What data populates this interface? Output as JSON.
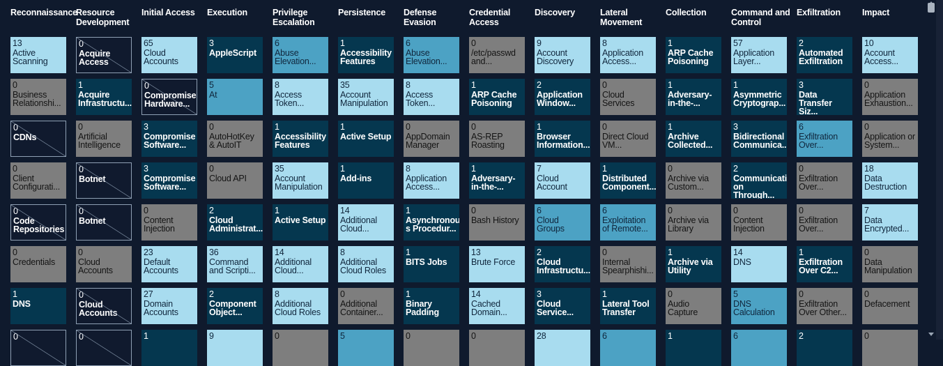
{
  "tactics": [
    {
      "name": "Reconnaissance",
      "techniques": [
        {
          "count": "13",
          "name": "Active Scanning",
          "tone": "light"
        },
        {
          "count": "0",
          "name": "Business Relationshi...",
          "tone": "gray"
        },
        {
          "count": "0",
          "name": "CDNs",
          "tone": "empty"
        },
        {
          "count": "0",
          "name": "Client Configurati...",
          "tone": "gray"
        },
        {
          "count": "0",
          "name": "Code Repositories",
          "tone": "empty"
        },
        {
          "count": "0",
          "name": "Credentials",
          "tone": "gray"
        },
        {
          "count": "1",
          "name": "DNS",
          "tone": "dark"
        },
        {
          "count": "0",
          "name": "",
          "tone": "empty"
        }
      ]
    },
    {
      "name": "Resource Development",
      "techniques": [
        {
          "count": "0",
          "name": "Acquire Access",
          "tone": "empty"
        },
        {
          "count": "1",
          "name": "Acquire Infrastructu...",
          "tone": "dark"
        },
        {
          "count": "0",
          "name": "Artificial Intelligence",
          "tone": "gray"
        },
        {
          "count": "0",
          "name": "Botnet",
          "tone": "empty"
        },
        {
          "count": "0",
          "name": "Botnet",
          "tone": "empty"
        },
        {
          "count": "0",
          "name": "Cloud Accounts",
          "tone": "gray"
        },
        {
          "count": "0",
          "name": "Cloud Accounts",
          "tone": "empty"
        },
        {
          "count": "0",
          "name": "",
          "tone": "empty"
        }
      ]
    },
    {
      "name": "Initial Access",
      "techniques": [
        {
          "count": "65",
          "name": "Cloud Accounts",
          "tone": "light"
        },
        {
          "count": "0",
          "name": "Compromise Hardware...",
          "tone": "empty"
        },
        {
          "count": "3",
          "name": "Compromise Software...",
          "tone": "dark"
        },
        {
          "count": "3",
          "name": "Compromise Software...",
          "tone": "dark"
        },
        {
          "count": "0",
          "name": "Content Injection",
          "tone": "gray"
        },
        {
          "count": "23",
          "name": "Default Accounts",
          "tone": "light"
        },
        {
          "count": "27",
          "name": "Domain Accounts",
          "tone": "light"
        },
        {
          "count": "1",
          "name": "",
          "tone": "dark"
        }
      ]
    },
    {
      "name": "Execution",
      "techniques": [
        {
          "count": "3",
          "name": "AppleScript",
          "tone": "dark"
        },
        {
          "count": "5",
          "name": "At",
          "tone": "mid"
        },
        {
          "count": "0",
          "name": "AutoHotKey & AutoIT",
          "tone": "gray"
        },
        {
          "count": "0",
          "name": "Cloud API",
          "tone": "gray"
        },
        {
          "count": "2",
          "name": "Cloud Administrat...",
          "tone": "dark"
        },
        {
          "count": "36",
          "name": "Command and Scripti...",
          "tone": "light"
        },
        {
          "count": "2",
          "name": "Component Object...",
          "tone": "dark"
        },
        {
          "count": "9",
          "name": "",
          "tone": "light"
        }
      ]
    },
    {
      "name": "Privilege Escalation",
      "techniques": [
        {
          "count": "6",
          "name": "Abuse Elevation...",
          "tone": "mid"
        },
        {
          "count": "8",
          "name": "Access Token...",
          "tone": "light"
        },
        {
          "count": "1",
          "name": "Accessibility Features",
          "tone": "dark"
        },
        {
          "count": "35",
          "name": "Account Manipulation",
          "tone": "light"
        },
        {
          "count": "1",
          "name": "Active Setup",
          "tone": "dark"
        },
        {
          "count": "14",
          "name": "Additional Cloud...",
          "tone": "light"
        },
        {
          "count": "8",
          "name": "Additional Cloud Roles",
          "tone": "light"
        },
        {
          "count": "0",
          "name": "",
          "tone": "gray"
        }
      ]
    },
    {
      "name": "Persistence",
      "techniques": [
        {
          "count": "1",
          "name": "Accessibility Features",
          "tone": "dark"
        },
        {
          "count": "35",
          "name": "Account Manipulation",
          "tone": "light"
        },
        {
          "count": "1",
          "name": "Active Setup",
          "tone": "dark"
        },
        {
          "count": "1",
          "name": "Add-ins",
          "tone": "dark"
        },
        {
          "count": "14",
          "name": "Additional Cloud...",
          "tone": "light"
        },
        {
          "count": "8",
          "name": "Additional Cloud Roles",
          "tone": "light"
        },
        {
          "count": "0",
          "name": "Additional Container...",
          "tone": "gray"
        },
        {
          "count": "5",
          "name": "",
          "tone": "mid"
        }
      ]
    },
    {
      "name": "Defense Evasion",
      "techniques": [
        {
          "count": "6",
          "name": "Abuse Elevation...",
          "tone": "mid"
        },
        {
          "count": "8",
          "name": "Access Token...",
          "tone": "light"
        },
        {
          "count": "0",
          "name": "AppDomain Manager",
          "tone": "gray"
        },
        {
          "count": "8",
          "name": "Application Access...",
          "tone": "light"
        },
        {
          "count": "1",
          "name": "Asynchronou s Procedur...",
          "tone": "dark"
        },
        {
          "count": "1",
          "name": "BITS Jobs",
          "tone": "dark"
        },
        {
          "count": "1",
          "name": "Binary Padding",
          "tone": "dark"
        },
        {
          "count": "0",
          "name": "",
          "tone": "gray"
        }
      ]
    },
    {
      "name": "Credential Access",
      "techniques": [
        {
          "count": "0",
          "name": "/etc/passwd and...",
          "tone": "gray"
        },
        {
          "count": "1",
          "name": "ARP Cache Poisoning",
          "tone": "dark"
        },
        {
          "count": "0",
          "name": "AS-REP Roasting",
          "tone": "gray"
        },
        {
          "count": "1",
          "name": "Adversary-in-the-...",
          "tone": "dark"
        },
        {
          "count": "0",
          "name": "Bash History",
          "tone": "gray"
        },
        {
          "count": "13",
          "name": "Brute Force",
          "tone": "light"
        },
        {
          "count": "14",
          "name": "Cached Domain...",
          "tone": "light"
        },
        {
          "count": "0",
          "name": "",
          "tone": "gray"
        }
      ]
    },
    {
      "name": "Discovery",
      "techniques": [
        {
          "count": "9",
          "name": "Account Discovery",
          "tone": "light"
        },
        {
          "count": "2",
          "name": "Application Window...",
          "tone": "dark"
        },
        {
          "count": "1",
          "name": "Browser Information...",
          "tone": "dark"
        },
        {
          "count": "7",
          "name": "Cloud Account",
          "tone": "light"
        },
        {
          "count": "6",
          "name": "Cloud Groups",
          "tone": "mid"
        },
        {
          "count": "2",
          "name": "Cloud Infrastructu...",
          "tone": "dark"
        },
        {
          "count": "3",
          "name": "Cloud Service...",
          "tone": "dark"
        },
        {
          "count": "28",
          "name": "",
          "tone": "light"
        }
      ]
    },
    {
      "name": "Lateral Movement",
      "techniques": [
        {
          "count": "8",
          "name": "Application Access...",
          "tone": "light"
        },
        {
          "count": "0",
          "name": "Cloud Services",
          "tone": "gray"
        },
        {
          "count": "0",
          "name": "Direct Cloud VM...",
          "tone": "gray"
        },
        {
          "count": "1",
          "name": "Distributed Component...",
          "tone": "dark"
        },
        {
          "count": "6",
          "name": "Exploitation of Remote...",
          "tone": "mid"
        },
        {
          "count": "0",
          "name": "Internal Spearphishi...",
          "tone": "gray"
        },
        {
          "count": "1",
          "name": "Lateral Tool Transfer",
          "tone": "dark"
        },
        {
          "count": "6",
          "name": "",
          "tone": "mid"
        }
      ]
    },
    {
      "name": "Collection",
      "techniques": [
        {
          "count": "1",
          "name": "ARP Cache Poisoning",
          "tone": "dark"
        },
        {
          "count": "1",
          "name": "Adversary-in-the-...",
          "tone": "dark"
        },
        {
          "count": "1",
          "name": "Archive Collected...",
          "tone": "dark"
        },
        {
          "count": "0",
          "name": "Archive via Custom...",
          "tone": "gray"
        },
        {
          "count": "0",
          "name": "Archive via Library",
          "tone": "gray"
        },
        {
          "count": "1",
          "name": "Archive via Utility",
          "tone": "dark"
        },
        {
          "count": "0",
          "name": "Audio Capture",
          "tone": "gray"
        },
        {
          "count": "1",
          "name": "",
          "tone": "dark"
        }
      ]
    },
    {
      "name": "Command and Control",
      "techniques": [
        {
          "count": "57",
          "name": "Application Layer...",
          "tone": "light"
        },
        {
          "count": "1",
          "name": "Asymmetric Cryptograp...",
          "tone": "dark"
        },
        {
          "count": "3",
          "name": "Bidirectional Communica...",
          "tone": "dark"
        },
        {
          "count": "2",
          "name": "Communicati on Through...",
          "tone": "dark"
        },
        {
          "count": "0",
          "name": "Content Injection",
          "tone": "gray"
        },
        {
          "count": "14",
          "name": "DNS",
          "tone": "light"
        },
        {
          "count": "5",
          "name": "DNS Calculation",
          "tone": "mid"
        },
        {
          "count": "6",
          "name": "",
          "tone": "mid"
        }
      ]
    },
    {
      "name": "Exfiltration",
      "techniques": [
        {
          "count": "2",
          "name": "Automated Exfiltration",
          "tone": "dark"
        },
        {
          "count": "3",
          "name": "Data Transfer Siz...",
          "tone": "dark"
        },
        {
          "count": "6",
          "name": "Exfiltration Over...",
          "tone": "mid"
        },
        {
          "count": "0",
          "name": "Exfiltration Over...",
          "tone": "gray"
        },
        {
          "count": "0",
          "name": "Exfiltration Over...",
          "tone": "gray"
        },
        {
          "count": "1",
          "name": "Exfiltration Over C2...",
          "tone": "dark"
        },
        {
          "count": "0",
          "name": "Exfiltration Over Other...",
          "tone": "gray"
        },
        {
          "count": "2",
          "name": "",
          "tone": "dark"
        }
      ]
    },
    {
      "name": "Impact",
      "techniques": [
        {
          "count": "10",
          "name": "Account Access...",
          "tone": "light"
        },
        {
          "count": "0",
          "name": "Application Exhaustion...",
          "tone": "gray"
        },
        {
          "count": "0",
          "name": "Application or System...",
          "tone": "gray"
        },
        {
          "count": "18",
          "name": "Data Destruction",
          "tone": "light"
        },
        {
          "count": "7",
          "name": "Data Encrypted...",
          "tone": "light"
        },
        {
          "count": "0",
          "name": "Data Manipulation",
          "tone": "gray"
        },
        {
          "count": "0",
          "name": "Defacement",
          "tone": "gray"
        },
        {
          "count": "0",
          "name": "",
          "tone": "gray"
        }
      ]
    }
  ],
  "colors": {
    "background": "#0f1a2d",
    "light": "#a8dcef",
    "mid": "#4ca2c4",
    "dark": "#05374f",
    "gray": "#7e7e7e",
    "empty_border": "#8fa0b4"
  }
}
